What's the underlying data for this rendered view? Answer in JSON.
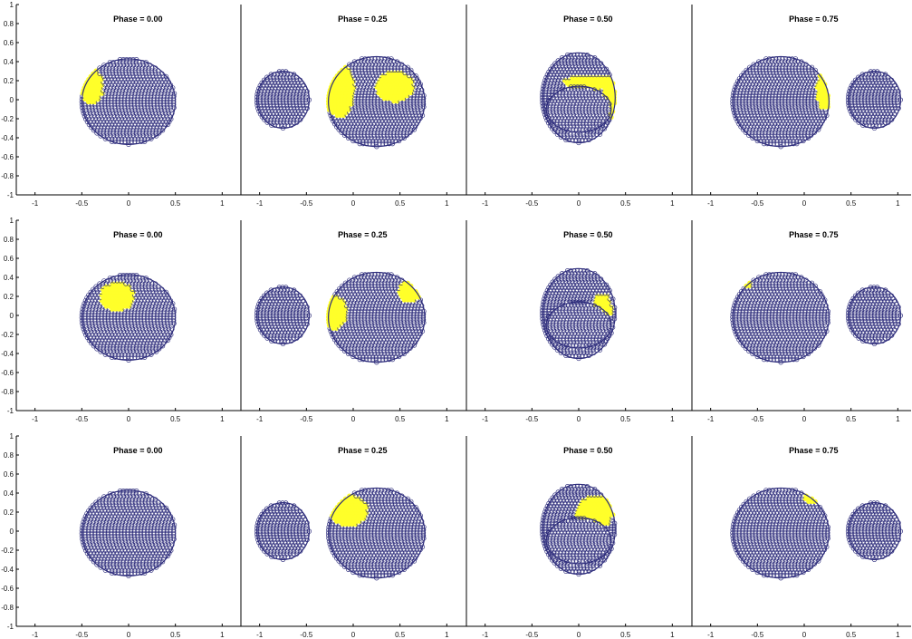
{
  "colors": {
    "star": "#2e2d7c",
    "spot": "#ffff2a",
    "axis": "#000000",
    "background": "#ffffff"
  },
  "chart_data": {
    "type": "scatter",
    "description_note": "",
    "xlim": [
      -1.2,
      1.2
    ],
    "ylim": [
      -1,
      1
    ],
    "xticks": [
      "-1",
      "-0.5",
      "0",
      "0.5",
      "1"
    ],
    "yticks": [
      "1",
      "0.8",
      "0.6",
      "0.4",
      "0.2",
      "0",
      "-0.2",
      "-0.4",
      "-0.6",
      "-0.8",
      "-1"
    ],
    "primary": {
      "rx": 0.5,
      "ry": 0.45
    },
    "secondary": {
      "rx": 0.33,
      "ry": 0.23,
      "sep": 1.05
    },
    "rows": [
      {
        "panels": [
          {
            "title": "Phase = 0.00",
            "phase": 0.0,
            "spots": [
              {
                "cx": -0.39,
                "cy": 0.14,
                "rx": 0.12,
                "ry": 0.18
              }
            ]
          },
          {
            "title": "Phase = 0.25",
            "phase": 0.25,
            "spots": [
              {
                "cx": -0.15,
                "cy": 0.1,
                "rx": 0.16,
                "ry": 0.28
              },
              {
                "cx": 0.45,
                "cy": 0.14,
                "rx": 0.2,
                "ry": 0.16
              }
            ]
          },
          {
            "title": "Phase = 0.50",
            "phase": 0.5,
            "spots": [
              {
                "cx": 0.1,
                "cy": 0.18,
                "rx": 0.26,
                "ry": 0.08
              },
              {
                "cx": 0.33,
                "cy": 0.02,
                "rx": 0.08,
                "ry": 0.22
              }
            ]
          },
          {
            "title": "Phase = 0.75",
            "phase": 0.75,
            "spots": [
              {
                "cx": 0.22,
                "cy": 0.1,
                "rx": 0.09,
                "ry": 0.2
              }
            ]
          }
        ]
      },
      {
        "panels": [
          {
            "title": "Phase = 0.00",
            "phase": 0.0,
            "spots": [
              {
                "cx": -0.12,
                "cy": 0.2,
                "rx": 0.18,
                "ry": 0.15
              }
            ]
          },
          {
            "title": "Phase = 0.25",
            "phase": 0.25,
            "spots": [
              {
                "cx": -0.2,
                "cy": 0.03,
                "rx": 0.13,
                "ry": 0.17
              },
              {
                "cx": 0.6,
                "cy": 0.25,
                "rx": 0.12,
                "ry": 0.11
              }
            ]
          },
          {
            "title": "Phase = 0.50",
            "phase": 0.5,
            "spots": [
              {
                "cx": 0.25,
                "cy": 0.07,
                "rx": 0.1,
                "ry": 0.16
              }
            ]
          },
          {
            "title": "Phase = 0.75",
            "phase": 0.75,
            "spots": [
              {
                "cx": -0.6,
                "cy": 0.33,
                "rx": 0.05,
                "ry": 0.04
              }
            ]
          }
        ]
      },
      {
        "panels": [
          {
            "title": "Phase = 0.00",
            "phase": 0.0,
            "spots": []
          },
          {
            "title": "Phase = 0.25",
            "phase": 0.25,
            "spots": [
              {
                "cx": -0.05,
                "cy": 0.22,
                "rx": 0.2,
                "ry": 0.16
              }
            ]
          },
          {
            "title": "Phase = 0.50",
            "phase": 0.5,
            "spots": [
              {
                "cx": 0.17,
                "cy": 0.2,
                "rx": 0.2,
                "ry": 0.17
              }
            ]
          },
          {
            "title": "Phase = 0.75",
            "phase": 0.75,
            "spots": [
              {
                "cx": 0.1,
                "cy": 0.36,
                "rx": 0.1,
                "ry": 0.06
              }
            ]
          }
        ]
      }
    ]
  }
}
